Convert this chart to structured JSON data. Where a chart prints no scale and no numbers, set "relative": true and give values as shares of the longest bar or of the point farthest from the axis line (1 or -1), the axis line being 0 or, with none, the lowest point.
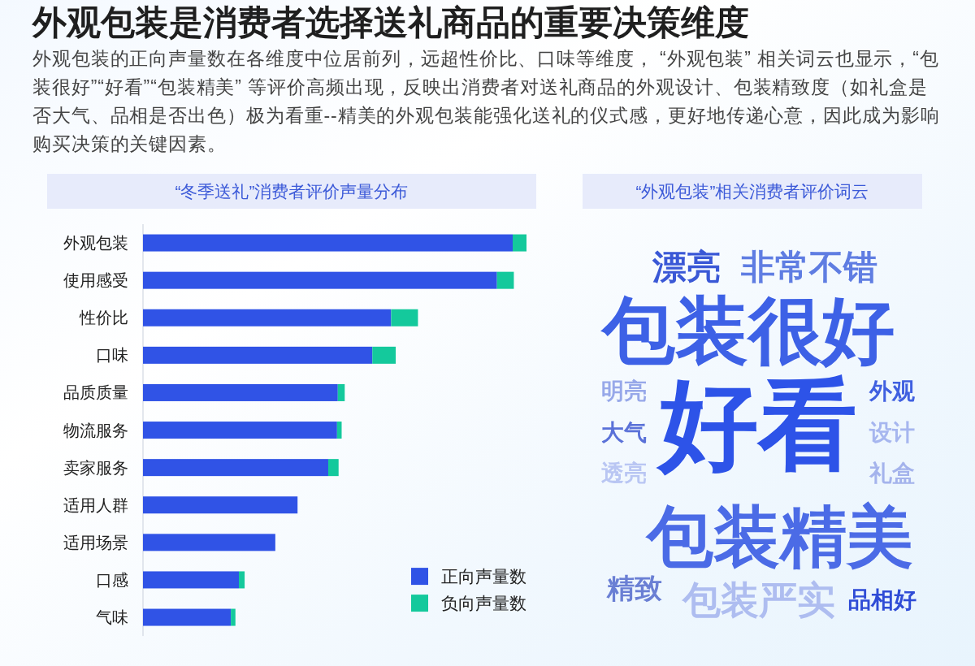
{
  "chart_data": [
    {
      "type": "other",
      "title": "外观包装是消费者选择送礼商品的重要决策维度",
      "subtitle": "外观包装的正向声量数在各维度中位居前列，远超性价比、口味等维度， “外观包装” 相关词云也显示，“包装很好”“好看”“包装精美” 等评价高频出现，反映出消费者对送礼商品的外观设计、包装精致度（如礼盒是否大气、品相是否出色）极为看重--精美的外观包装能强化送礼的仪式感，更好地传递心意，因此成为影响购买决策的关键因素。"
    },
    {
      "type": "bar",
      "title": "“冬季送礼”消费者评价声量分布",
      "orientation": "horizontal",
      "stacked": true,
      "relative": true,
      "legend": "bottom right",
      "categories": [
        "外观包装",
        "使用感受",
        "性价比",
        "口味",
        "品质质量",
        "物流服务",
        "卖家服务",
        "适用人群",
        "适用场景",
        "口感",
        "气味"
      ],
      "series": [
        {
          "name": "正向声量数",
          "color": "#3053e6",
          "values": [
            0.964,
            0.923,
            0.647,
            0.598,
            0.508,
            0.506,
            0.483,
            0.403,
            0.345,
            0.25,
            0.229
          ]
        },
        {
          "name": "负向声量数",
          "color": "#14c99c",
          "values": [
            0.036,
            0.044,
            0.07,
            0.061,
            0.018,
            0.012,
            0.027,
            null,
            null,
            0.015,
            0.012
          ]
        }
      ]
    },
    {
      "type": "other",
      "title": "“外观包装”相关消费者评价词云",
      "annotations": [
        "漂亮",
        "非常不错",
        "包装很好",
        "明亮",
        "好看",
        "外观",
        "大气",
        "设计",
        "透亮",
        "礼盒",
        "包装精美",
        "精致",
        "包装严实",
        "品相好"
      ]
    }
  ]
}
